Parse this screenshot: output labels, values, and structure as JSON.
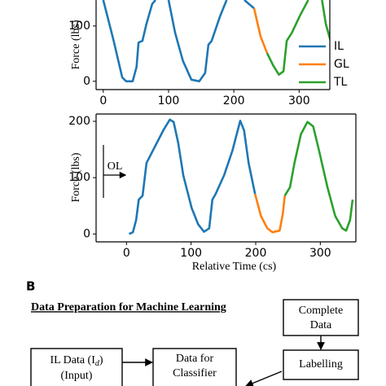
{
  "chart_data": [
    {
      "type": "line",
      "ylabel": "Force (lbs)",
      "legend": "lower right",
      "xlim": [
        -11,
        347
      ],
      "ylim": [
        -15,
        147
      ],
      "xticks": [
        0,
        100,
        200,
        300
      ],
      "yticks": [
        0,
        100
      ],
      "series": [
        {
          "name": "IL",
          "color": "#1f77b4",
          "x": [
            0,
            16,
            29,
            35,
            45,
            51,
            54,
            60,
            66,
            75,
            80,
            90,
            100,
            110,
            122,
            135,
            147,
            156,
            161,
            166,
            179,
            189,
            200,
            216,
            231
          ],
          "values": [
            147,
            73,
            7,
            0,
            0,
            26,
            70,
            73,
            103,
            140,
            147,
            null,
            147,
            88,
            37,
            3,
            0,
            15,
            66,
            73,
            118,
            147,
            null,
            147,
            132
          ]
        },
        {
          "name": "GL",
          "color": "#ff7f0e",
          "x": [
            231,
            241,
            251
          ],
          "values": [
            132,
            81,
            51
          ]
        },
        {
          "name": "TL",
          "color": "#2ca02c",
          "x": [
            251,
            260,
            269,
            276,
            281,
            289,
            301,
            314,
            325,
            335,
            341,
            348
          ],
          "values": [
            51,
            29,
            12,
            18,
            73,
            88,
            118,
            147,
            null,
            147,
            103,
            74
          ]
        }
      ]
    },
    {
      "type": "line",
      "ylabel": "Force (lbs)",
      "xlabel": "Relative Time (cs)",
      "annotation": "OL",
      "xlim": [
        -47,
        355
      ],
      "ylim": [
        -14,
        213
      ],
      "xticks": [
        0,
        100,
        200,
        300
      ],
      "yticks": [
        0,
        100,
        200
      ],
      "series": [
        {
          "color": "#1f77b4",
          "x": [
            4,
            10,
            15,
            19,
            25,
            31,
            44,
            57,
            67,
            73,
            80,
            88,
            101,
            111,
            120,
            128,
            133,
            138,
            151,
            164,
            176,
            182,
            189,
            199
          ],
          "values": [
            0,
            3,
            25,
            61,
            68,
            126,
            155,
            184,
            203,
            199,
            162,
            104,
            46,
            17,
            4,
            10,
            61,
            71,
            104,
            148,
            201,
            184,
            126,
            71
          ]
        },
        {
          "color": "#ff7f0e",
          "x": [
            199,
            208,
            218,
            226,
            237,
            242,
            245
          ],
          "values": [
            71,
            32,
            10,
            3,
            6,
            36,
            68
          ]
        },
        {
          "color": "#2ca02c",
          "x": [
            245,
            253,
            260,
            270,
            280,
            289,
            298,
            311,
            323,
            334,
            340,
            346,
            350
          ],
          "values": [
            68,
            83,
            126,
            177,
            199,
            191,
            148,
            83,
            32,
            10,
            6,
            25,
            61
          ]
        }
      ]
    }
  ],
  "panel_label": "B",
  "diagram": {
    "title": "Data Preparation for Machine Learning",
    "complete": [
      "Complete",
      "Data"
    ],
    "labelling": "Labelling",
    "il_data": {
      "text": "IL Data (I",
      "sub": "d",
      "close": ")",
      "line2": "(Input)"
    },
    "classifier": [
      "Data for",
      "Classifier"
    ]
  }
}
